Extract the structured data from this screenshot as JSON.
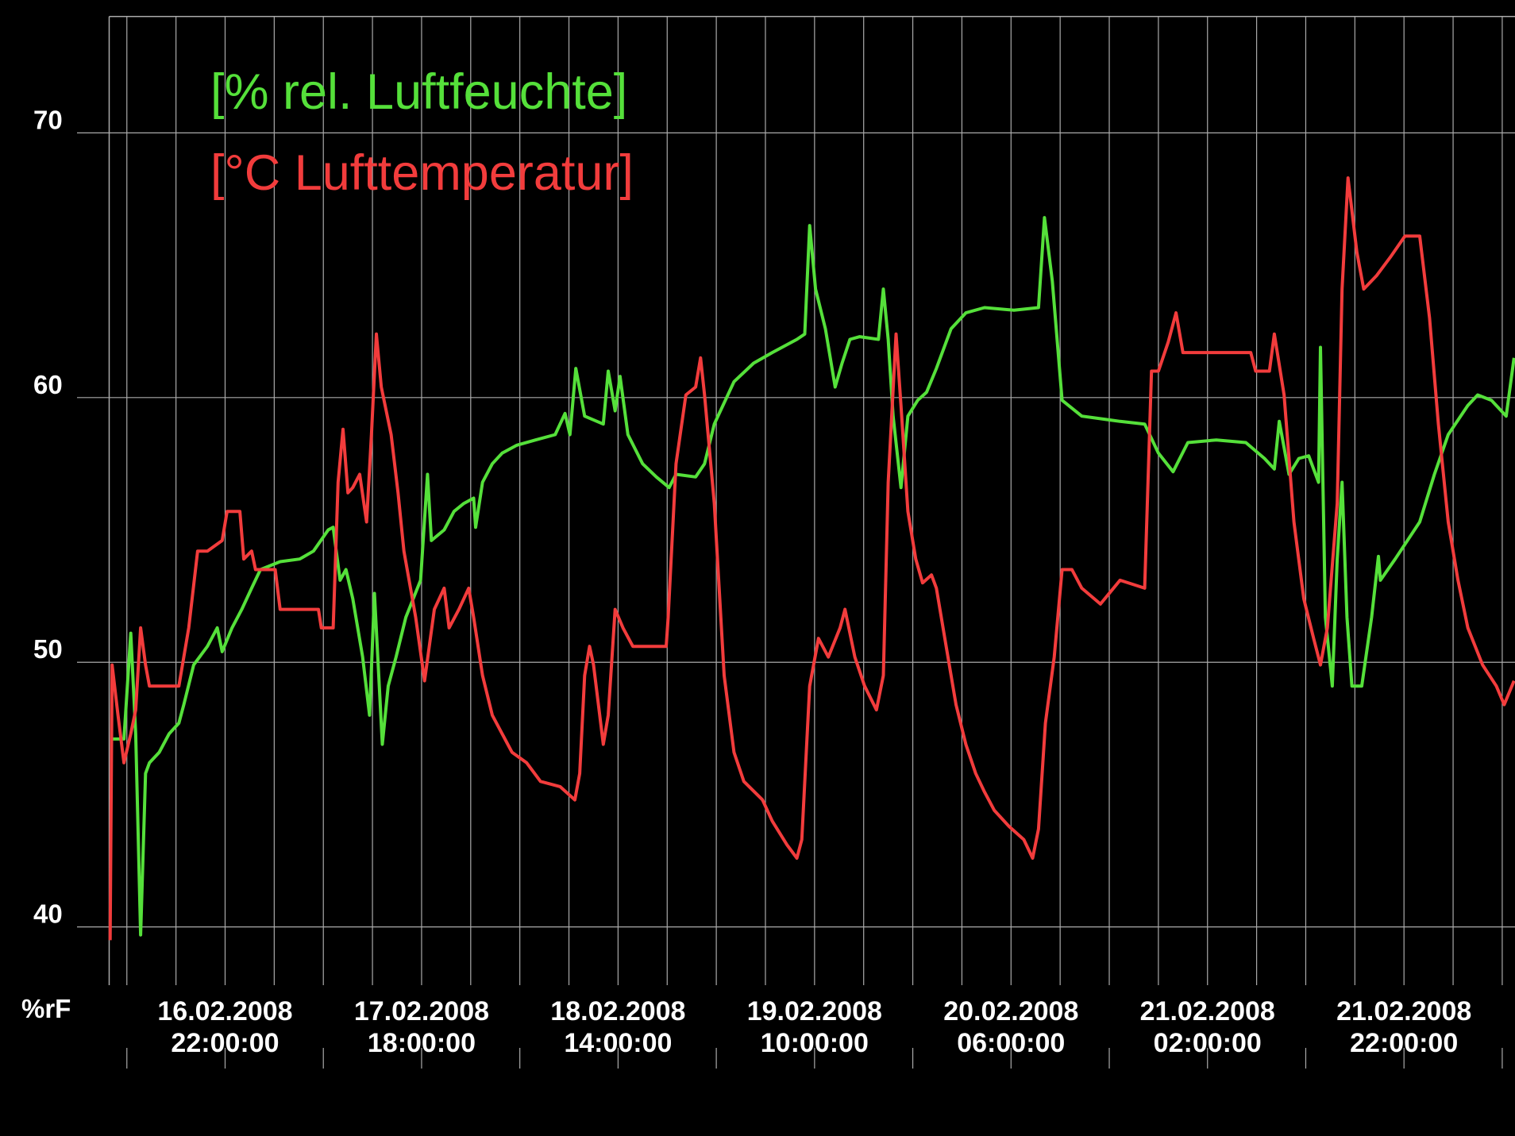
{
  "chart_data": {
    "type": "line",
    "y_label": "%rF",
    "ylim": [
      37.8,
      74.4
    ],
    "yticks": [
      40,
      50,
      60,
      70
    ],
    "xlim": [
      10.2,
      153.3
    ],
    "xticks": [
      {
        "value": 22,
        "label": "16.02.2008 22:00:00"
      },
      {
        "value": 42,
        "label": "17.02.2008 18:00:00"
      },
      {
        "value": 62,
        "label": "18.02.2008 14:00:00"
      },
      {
        "value": 82,
        "label": "19.02.2008 10:00:00"
      },
      {
        "value": 102,
        "label": "20.02.2008 06:00:00"
      },
      {
        "value": 122,
        "label": "21.02.2008 02:00:00"
      },
      {
        "value": 142,
        "label": "21.02.2008 22:00:00"
      }
    ],
    "x_grid": [
      12,
      17,
      22,
      27,
      32,
      37,
      42,
      47,
      52,
      57,
      62,
      67,
      72,
      77,
      82,
      87,
      92,
      97,
      102,
      107,
      112,
      117,
      122,
      127,
      132,
      137,
      142,
      147,
      152
    ],
    "x_tick_marks": [
      12,
      22,
      32,
      42,
      52,
      62,
      72,
      82,
      92,
      102,
      112,
      122,
      132,
      142,
      152
    ],
    "grid": true,
    "series": [
      {
        "name": "[% rel. Luftfeuchte]",
        "color": "#55e03a",
        "x": [
          10.4,
          11.7,
          12.4,
          12.9,
          13.4,
          13.9,
          14.3,
          15.3,
          16.3,
          17.3,
          17.8,
          18.8,
          20.2,
          21.2,
          21.7,
          22.7,
          23.7,
          24.7,
          25.6,
          27.6,
          29.6,
          31.0,
          32.5,
          33.0,
          33.7,
          34.3,
          35.0,
          36.0,
          36.7,
          37.2,
          38.0,
          38.6,
          39.4,
          40.4,
          41.9,
          42.6,
          43.0,
          44.3,
          45.3,
          46.3,
          47.3,
          47.5,
          48.2,
          49.2,
          50.2,
          51.7,
          53.6,
          55.6,
          56.6,
          57.1,
          57.7,
          58.6,
          60.5,
          61.0,
          61.7,
          62.2,
          63.0,
          64.5,
          65.9,
          67.2,
          67.9,
          69.9,
          70.8,
          71.8,
          73.8,
          75.8,
          77.7,
          80.2,
          81.0,
          81.5,
          82.1,
          83.1,
          84.1,
          84.8,
          85.6,
          86.6,
          88.5,
          89.0,
          89.5,
          90.0,
          90.8,
          91.5,
          92.5,
          93.4,
          94.4,
          95.9,
          97.4,
          99.3,
          102.3,
          104.8,
          105.4,
          106.2,
          107.2,
          109.2,
          113.1,
          115.6,
          117.0,
          118.5,
          120.0,
          122.9,
          125.9,
          127.8,
          128.8,
          129.3,
          130.3,
          131.3,
          132.3,
          133.3,
          133.5,
          134.0,
          134.7,
          135.2,
          135.7,
          136.2,
          136.7,
          137.7,
          138.7,
          139.4,
          139.6,
          141.1,
          143.6,
          145.1,
          146.5,
          148.5,
          149.5,
          150.9,
          152.4,
          153.2
        ],
        "values": [
          47.1,
          47.1,
          51.1,
          47.3,
          39.7,
          45.8,
          46.2,
          46.6,
          47.3,
          47.7,
          48.4,
          49.9,
          50.6,
          51.3,
          50.4,
          51.3,
          52.0,
          52.8,
          53.5,
          53.8,
          53.9,
          54.2,
          55.0,
          55.1,
          53.1,
          53.5,
          52.4,
          50.2,
          48.0,
          52.6,
          46.9,
          49.1,
          50.2,
          51.7,
          53.1,
          57.1,
          54.6,
          55.0,
          55.7,
          56.0,
          56.2,
          55.1,
          56.8,
          57.5,
          57.9,
          58.2,
          58.4,
          58.6,
          59.4,
          58.6,
          61.1,
          59.3,
          59.0,
          61.0,
          59.5,
          60.8,
          58.6,
          57.5,
          57.0,
          56.6,
          57.1,
          57.0,
          57.5,
          59.0,
          60.6,
          61.3,
          61.7,
          62.2,
          62.4,
          66.5,
          64.1,
          62.6,
          60.4,
          61.3,
          62.2,
          62.3,
          62.2,
          64.1,
          62.2,
          59.3,
          56.6,
          59.3,
          59.9,
          60.2,
          61.1,
          62.6,
          63.2,
          63.4,
          63.3,
          63.4,
          66.8,
          64.4,
          59.9,
          59.3,
          59.1,
          59.0,
          57.9,
          57.2,
          58.3,
          58.4,
          58.3,
          57.7,
          57.3,
          59.1,
          57.1,
          57.7,
          57.8,
          56.8,
          61.9,
          51.7,
          49.1,
          53.9,
          56.8,
          51.7,
          49.1,
          49.1,
          51.7,
          54.0,
          53.1,
          53.9,
          55.3,
          57.1,
          58.6,
          59.7,
          60.1,
          59.9,
          59.3,
          61.5
        ]
      },
      {
        "name": "[°C Lufttemperatur]",
        "color": "#f23c3c",
        "x": [
          10.3,
          10.5,
          11.1,
          11.7,
          12.4,
          12.9,
          13.4,
          13.9,
          14.3,
          17.3,
          18.3,
          19.2,
          20.2,
          21.7,
          22.2,
          23.5,
          23.9,
          24.7,
          25.1,
          27.1,
          27.6,
          28.6,
          31.5,
          31.8,
          33.0,
          33.5,
          34.0,
          34.5,
          35.0,
          35.7,
          36.4,
          36.9,
          37.4,
          37.9,
          38.9,
          39.6,
          40.2,
          41.4,
          42.3,
          43.3,
          44.3,
          44.8,
          45.8,
          46.8,
          47.3,
          48.2,
          49.2,
          50.2,
          51.2,
          52.7,
          54.1,
          56.1,
          57.6,
          58.1,
          58.6,
          59.1,
          59.5,
          60.5,
          61.0,
          61.7,
          62.5,
          63.5,
          66.9,
          67.1,
          67.9,
          68.9,
          69.9,
          70.4,
          70.8,
          71.8,
          72.8,
          73.8,
          74.8,
          76.7,
          77.7,
          79.2,
          80.2,
          80.7,
          81.5,
          82.4,
          83.4,
          84.6,
          85.1,
          86.1,
          87.1,
          88.3,
          89.0,
          89.5,
          90.3,
          90.8,
          91.5,
          92.3,
          93.0,
          93.9,
          94.4,
          95.4,
          96.4,
          97.4,
          98.4,
          99.3,
          100.3,
          101.8,
          103.3,
          104.2,
          104.8,
          105.5,
          106.4,
          107.2,
          108.2,
          109.2,
          111.1,
          113.1,
          115.6,
          116.3,
          117.0,
          118.0,
          118.8,
          119.5,
          122.0,
          126.4,
          126.9,
          128.3,
          128.8,
          129.8,
          130.8,
          131.8,
          132.8,
          133.5,
          134.2,
          135.2,
          135.7,
          136.3,
          137.2,
          137.9,
          139.2,
          140.6,
          142.1,
          143.6,
          144.6,
          145.5,
          146.5,
          147.5,
          148.5,
          150.0,
          151.4,
          152.2,
          153.2
        ],
        "values": [
          39.5,
          49.9,
          48.0,
          46.2,
          47.3,
          48.2,
          51.3,
          49.9,
          49.1,
          49.1,
          51.3,
          54.2,
          54.2,
          54.6,
          55.7,
          55.7,
          53.9,
          54.2,
          53.5,
          53.5,
          52.0,
          52.0,
          52.0,
          51.3,
          51.3,
          56.8,
          58.8,
          56.4,
          56.6,
          57.1,
          55.3,
          58.6,
          62.4,
          60.4,
          58.6,
          56.4,
          54.2,
          51.7,
          49.3,
          52.0,
          52.8,
          51.3,
          52.0,
          52.8,
          51.7,
          49.5,
          48.0,
          47.3,
          46.6,
          46.2,
          45.5,
          45.3,
          44.8,
          45.8,
          49.5,
          50.6,
          49.9,
          46.9,
          48.0,
          52.0,
          51.3,
          50.6,
          50.6,
          51.7,
          57.5,
          60.1,
          60.4,
          61.5,
          60.1,
          56.0,
          49.5,
          46.6,
          45.5,
          44.8,
          44.0,
          43.1,
          42.6,
          43.3,
          49.1,
          50.9,
          50.2,
          51.3,
          52.0,
          50.2,
          49.1,
          48.2,
          49.5,
          56.8,
          62.4,
          59.7,
          55.7,
          53.9,
          53.0,
          53.3,
          52.8,
          50.6,
          48.4,
          46.9,
          45.8,
          45.1,
          44.4,
          43.8,
          43.3,
          42.6,
          43.7,
          47.7,
          50.2,
          53.5,
          53.5,
          52.8,
          52.2,
          53.1,
          52.8,
          61.0,
          61.0,
          62.1,
          63.2,
          61.7,
          61.7,
          61.7,
          61.0,
          61.0,
          62.4,
          60.1,
          55.3,
          52.4,
          50.9,
          49.9,
          51.3,
          56.0,
          64.1,
          68.3,
          65.5,
          64.1,
          64.6,
          65.3,
          66.1,
          66.1,
          63.0,
          59.0,
          55.3,
          53.1,
          51.3,
          49.9,
          49.1,
          48.4,
          49.3
        ]
      }
    ]
  }
}
